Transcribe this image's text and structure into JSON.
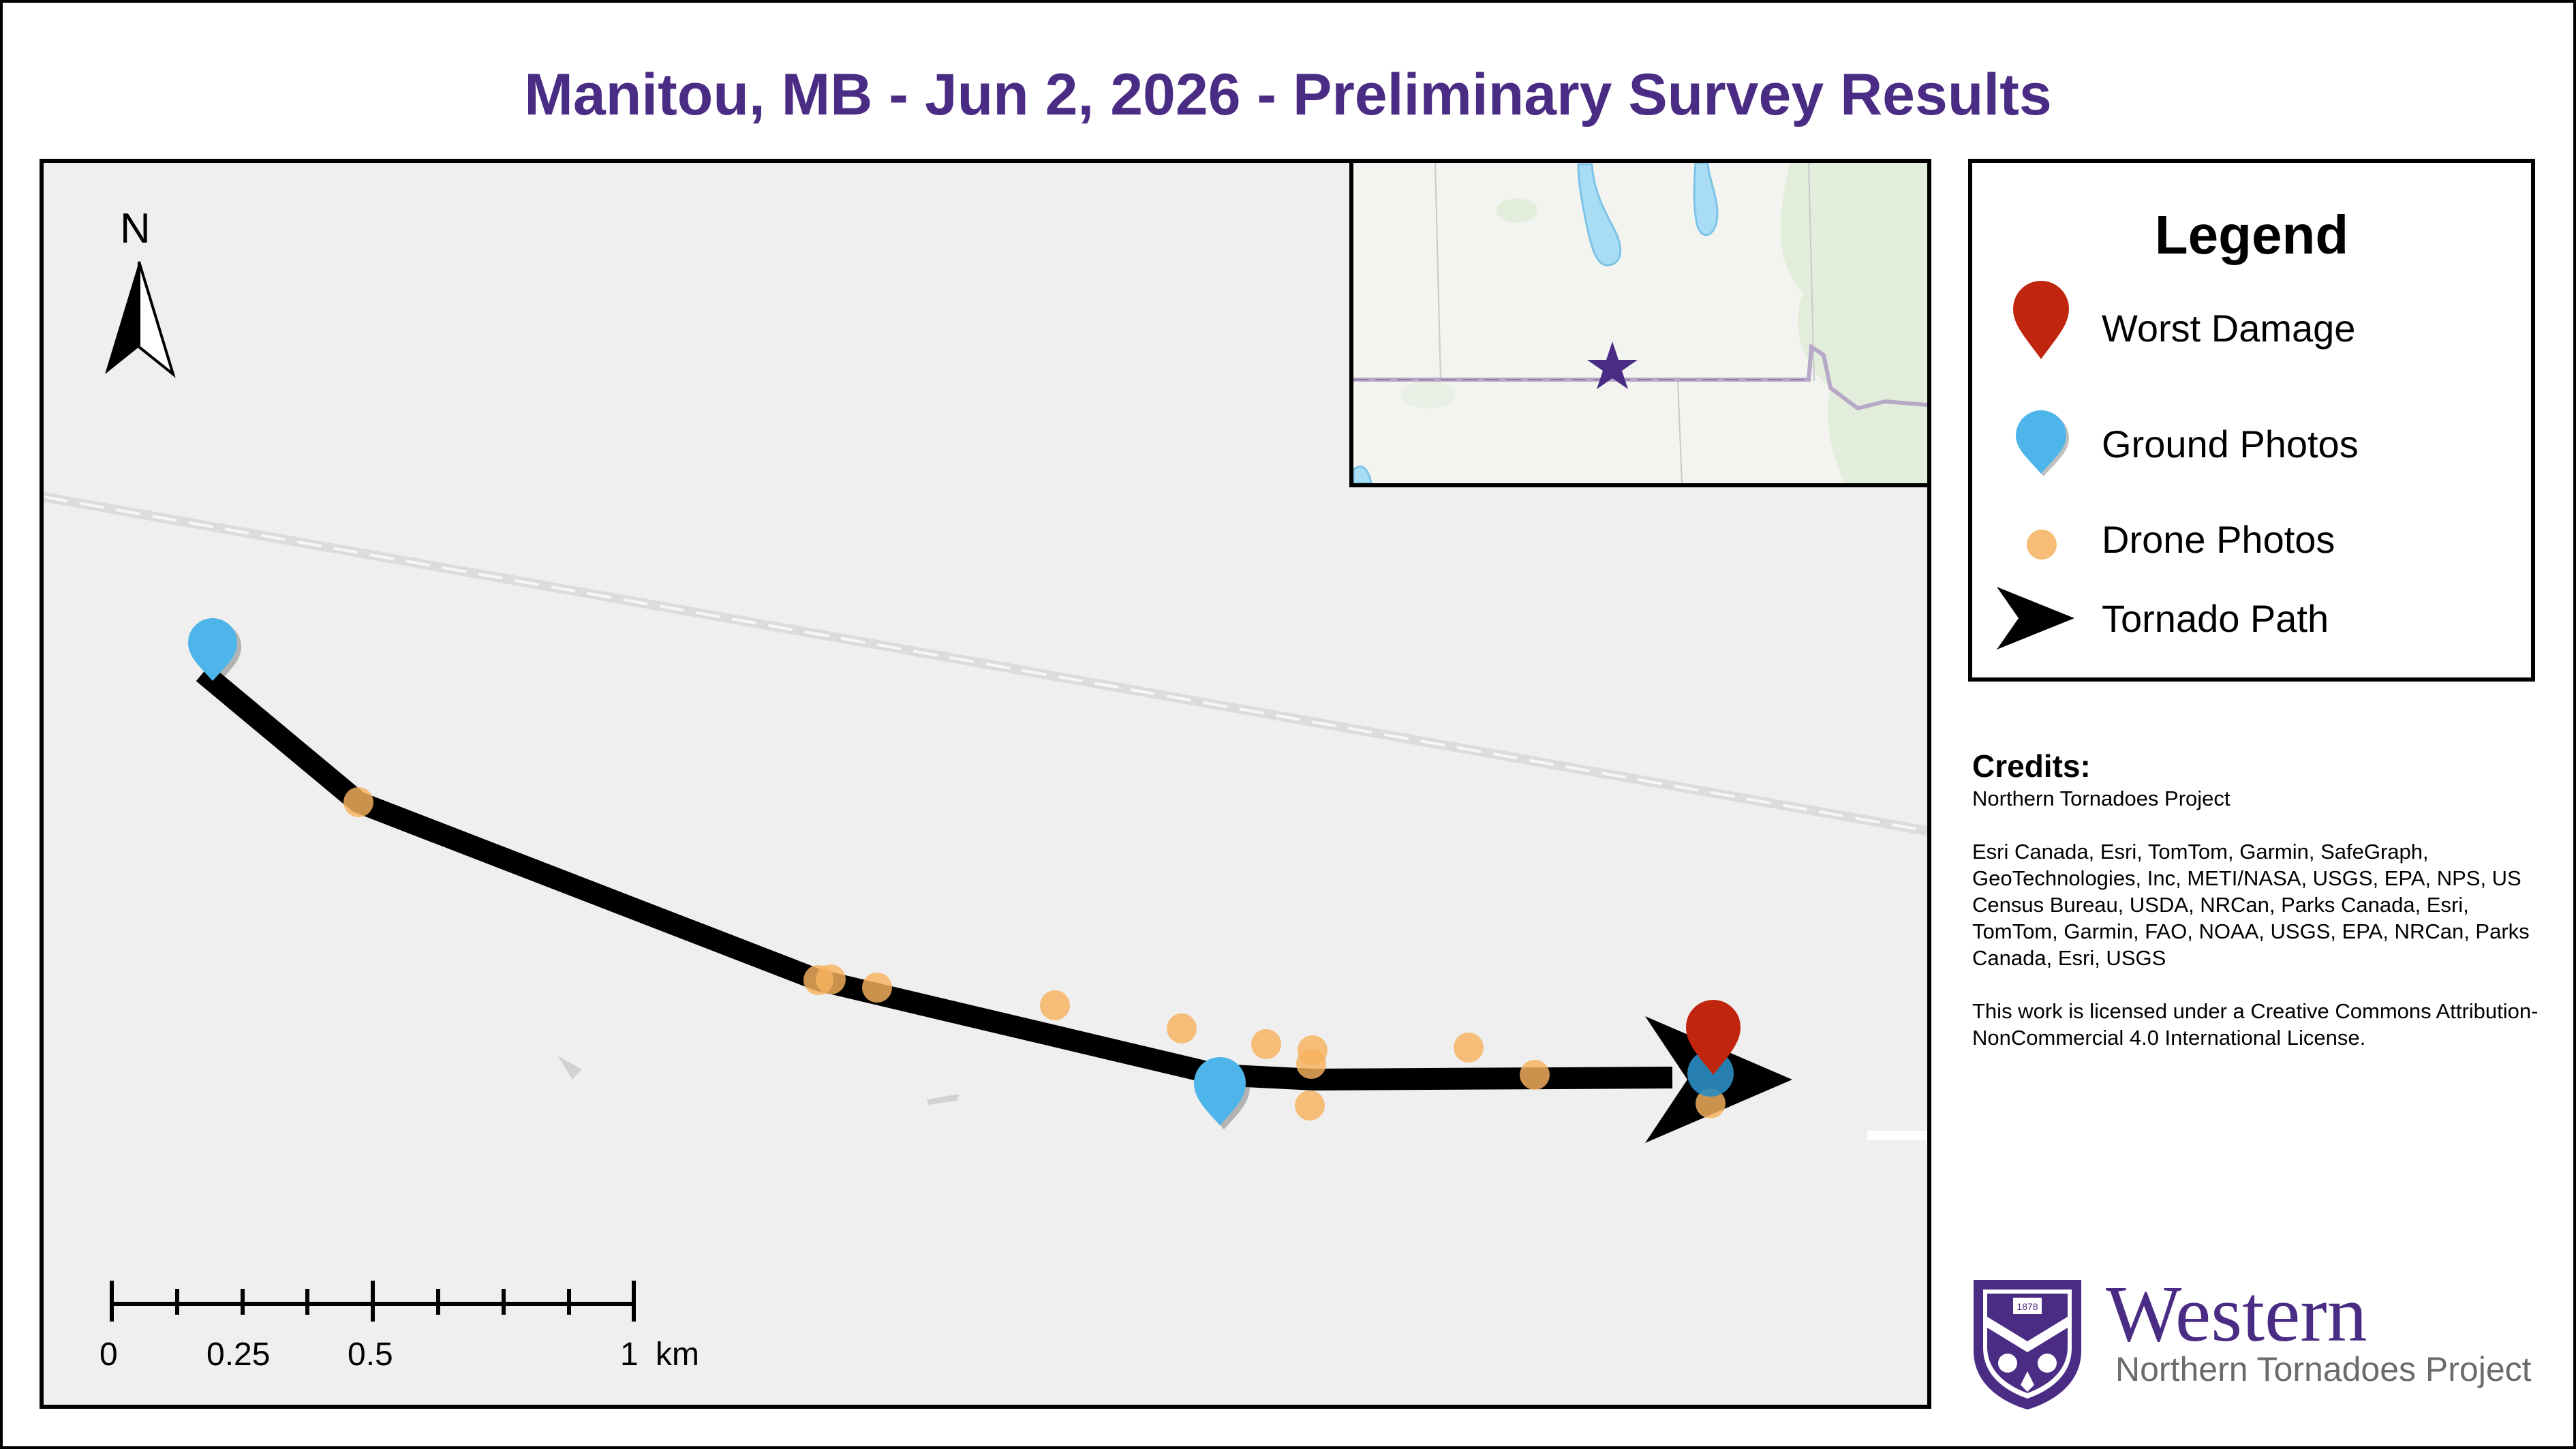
{
  "title": "Manitou, MB - Jun 2, 2026 - Preliminary Survey Results",
  "north_label": "N",
  "scale_bar": {
    "labels": [
      "0",
      "0.25",
      "0.5",
      "1"
    ],
    "unit": "km"
  },
  "legend": {
    "title": "Legend",
    "items": [
      {
        "label": "Worst Damage",
        "symbol": "red-marker-icon",
        "color": "#c0260e"
      },
      {
        "label": "Ground Photos",
        "symbol": "blue-marker-icon",
        "color": "#4db5e9"
      },
      {
        "label": "Drone Photos",
        "symbol": "orange-dot-icon",
        "color": "#f6b25e"
      },
      {
        "label": "Tornado Path",
        "symbol": "black-arrow-icon",
        "color": "#000000"
      }
    ]
  },
  "credits": {
    "heading": "Credits:",
    "org": "Northern Tornadoes Project",
    "sources": "Esri Canada, Esri, TomTom, Garmin, SafeGraph, GeoTechnologies, Inc, METI/NASA, USGS, EPA, NPS, US Census Bureau, USDA, NRCan, Parks Canada, Esri, TomTom, Garmin, FAO, NOAA, USGS, EPA, NRCan, Parks Canada, Esri, USGS",
    "license": "This work is licensed under a Creative Commons Attribution-NonCommercial 4.0 International License."
  },
  "logo": {
    "name": "Western",
    "subtitle": "Northern Tornadoes Project",
    "crest_year": "1878"
  },
  "colors": {
    "title": "#4b2c84",
    "path": "#000000",
    "worst": "#c0260e",
    "ground": "#4db5e9",
    "drone": "#f6b25e",
    "star": "#4b2c84"
  }
}
